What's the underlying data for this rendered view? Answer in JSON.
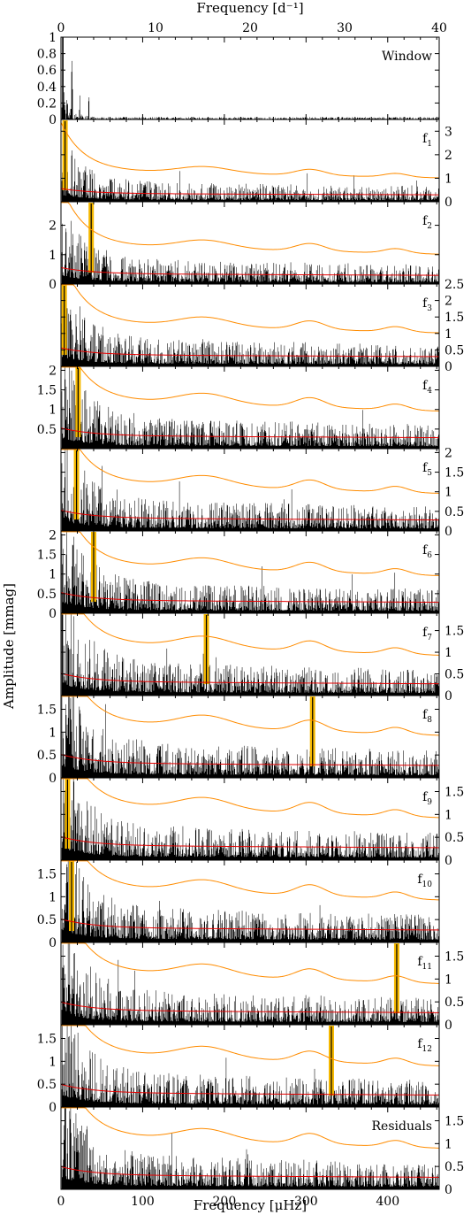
{
  "chart_data": {
    "type": "line",
    "title": "",
    "xlabel_bottom": "Frequency [μHz]",
    "xlabel_top": "Frequency [d⁻¹]",
    "ylabel": "Amplitude [mmag]",
    "xlim_uHz": [
      0,
      463
    ],
    "xlim_d": [
      0,
      40
    ],
    "xticks_bottom": [
      0,
      100,
      200,
      300,
      400
    ],
    "xticks_top": [
      0,
      10,
      20,
      30,
      40
    ],
    "colors": {
      "spectrum": "#000000",
      "threshold": "#ff8c00",
      "noise": "#e60000",
      "highlight": "#f5b800"
    },
    "panels": [
      {
        "label": "Window",
        "ylim": [
          0,
          1
        ],
        "ticks": [
          0,
          0.2,
          0.4,
          0.6,
          0.8,
          1
        ],
        "tick_labels": [
          "0",
          "0.2",
          "0.4",
          "0.6",
          "0.8",
          "1"
        ],
        "side": "left",
        "window": true
      },
      {
        "label": "f",
        "sub": "1",
        "ylim": [
          0,
          3.5
        ],
        "ticks": [
          0,
          1,
          2,
          3
        ],
        "tick_labels": [
          "0",
          "1",
          "2",
          "3"
        ],
        "side": "right",
        "highlight_uHz": 5,
        "noise_level": 0.35
      },
      {
        "label": "f",
        "sub": "2",
        "ylim": [
          0,
          2.8
        ],
        "ticks": [
          0,
          1,
          2
        ],
        "tick_labels": [
          "0",
          "1",
          "2"
        ],
        "side": "left",
        "highlight_uHz": 37,
        "noise_level": 0.35
      },
      {
        "label": "f",
        "sub": "3",
        "ylim": [
          0,
          2.5
        ],
        "ticks": [
          0,
          0.5,
          1,
          1.5,
          2,
          2.5
        ],
        "tick_labels": [
          "0",
          "0.5",
          "1",
          "1.5",
          "2",
          "2.5"
        ],
        "side": "right",
        "highlight_uHz": 4,
        "noise_level": 0.35
      },
      {
        "label": "f",
        "sub": "4",
        "ylim": [
          0,
          2.1
        ],
        "ticks": [
          0.5,
          1,
          1.5,
          2
        ],
        "tick_labels": [
          "0.5",
          "1",
          "1.5",
          "2"
        ],
        "side": "left",
        "highlight_uHz": 21,
        "noise_level": 0.33
      },
      {
        "label": "f",
        "sub": "5",
        "ylim": [
          0,
          2.1
        ],
        "ticks": [
          0,
          0.5,
          1,
          1.5,
          2
        ],
        "tick_labels": [
          "0",
          "0.5",
          "1",
          "1.5",
          "2"
        ],
        "side": "right",
        "highlight_uHz": 19,
        "noise_level": 0.33
      },
      {
        "label": "f",
        "sub": "6",
        "ylim": [
          0,
          2.1
        ],
        "ticks": [
          0,
          0.5,
          1,
          1.5,
          2
        ],
        "tick_labels": [
          "0",
          "0.5",
          "1",
          "1.5",
          "2"
        ],
        "side": "left",
        "highlight_uHz": 40,
        "noise_level": 0.33
      },
      {
        "label": "f",
        "sub": "7",
        "ylim": [
          0,
          1.9
        ],
        "ticks": [
          0,
          0.5,
          1,
          1.5
        ],
        "tick_labels": [
          "0",
          "0.5",
          "1",
          "1.5"
        ],
        "side": "right",
        "highlight_uHz": 178,
        "noise_level": 0.32
      },
      {
        "label": "f",
        "sub": "8",
        "ylim": [
          0,
          1.8
        ],
        "ticks": [
          0,
          0.5,
          1,
          1.5
        ],
        "tick_labels": [
          "0",
          "0.5",
          "1",
          "1.5"
        ],
        "side": "left",
        "highlight_uHz": 308,
        "noise_level": 0.32
      },
      {
        "label": "f",
        "sub": "9",
        "ylim": [
          0,
          1.8
        ],
        "ticks": [
          0,
          0.5,
          1,
          1.5
        ],
        "tick_labels": [
          "0",
          "0.5",
          "1",
          "1.5"
        ],
        "side": "right",
        "highlight_uHz": 8,
        "noise_level": 0.32
      },
      {
        "label": "f",
        "sub": "10",
        "ylim": [
          0,
          1.8
        ],
        "ticks": [
          0,
          0.5,
          1,
          1.5
        ],
        "tick_labels": [
          "0",
          "0.5",
          "1",
          "1.5"
        ],
        "side": "left",
        "highlight_uHz": 13,
        "noise_level": 0.32
      },
      {
        "label": "f",
        "sub": "11",
        "ylim": [
          0,
          1.8
        ],
        "ticks": [
          0,
          0.5,
          1,
          1.5
        ],
        "tick_labels": [
          "0",
          "0.5",
          "1",
          "1.5"
        ],
        "side": "right",
        "highlight_uHz": 411,
        "noise_level": 0.31
      },
      {
        "label": "f",
        "sub": "12",
        "ylim": [
          0,
          1.8
        ],
        "ticks": [
          0,
          0.5,
          1,
          1.5
        ],
        "tick_labels": [
          "0",
          "0.5",
          "1",
          "1.5"
        ],
        "side": "left",
        "highlight_uHz": 331,
        "noise_level": 0.31
      },
      {
        "label": "Residuals",
        "ylim": [
          0,
          1.8
        ],
        "ticks": [
          0,
          0.5,
          1,
          1.5
        ],
        "tick_labels": [
          "0",
          "0.5",
          "1",
          "1.5"
        ],
        "side": "right",
        "noise_level": 0.31
      }
    ]
  }
}
